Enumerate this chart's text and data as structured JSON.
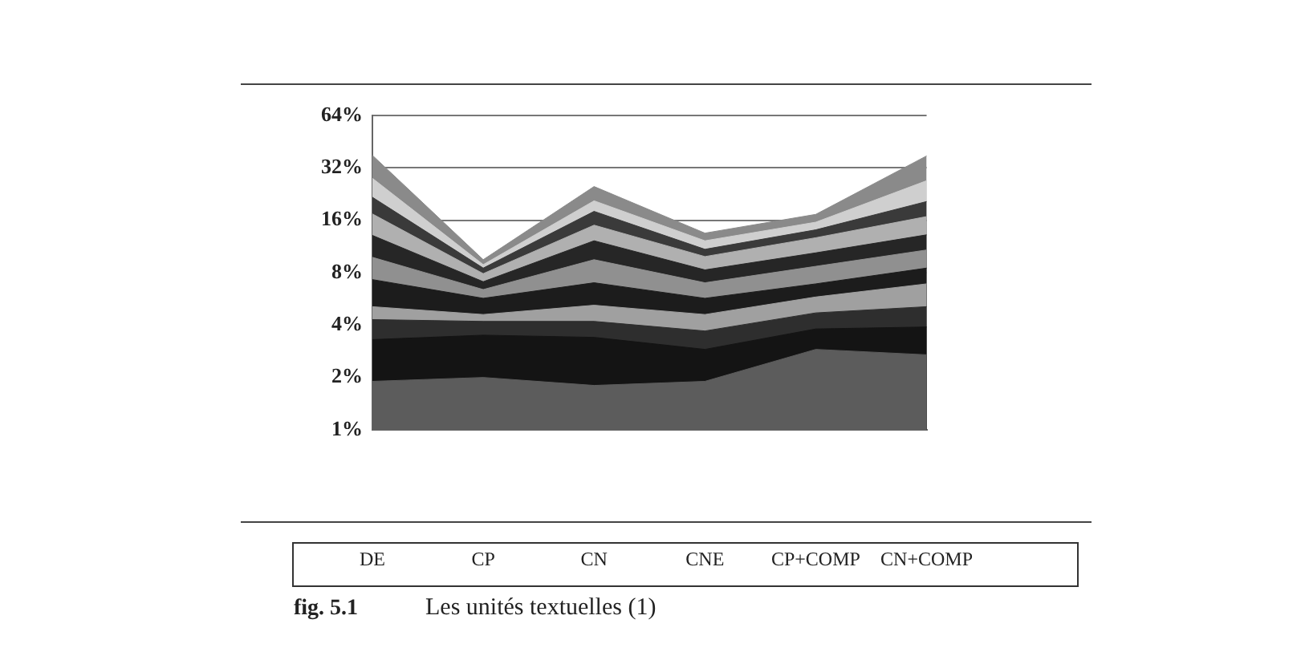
{
  "chart_data": {
    "type": "area",
    "log": true,
    "grid": "y",
    "categories": [
      "DE",
      "CP",
      "CN",
      "CNE",
      "CP+COMP",
      "CN+COMP"
    ],
    "ylim": [
      1,
      64
    ],
    "yticks": [
      {
        "value": 1,
        "label": "1%"
      },
      {
        "value": 2,
        "label": "2%"
      },
      {
        "value": 4,
        "label": "4%"
      },
      {
        "value": 8,
        "label": "8%"
      },
      {
        "value": 16,
        "label": "16%"
      },
      {
        "value": 32,
        "label": "32%"
      },
      {
        "value": 64,
        "label": "64%"
      }
    ],
    "series": [
      {
        "color": "#5c5c5c",
        "values": [
          1.9,
          2.0,
          1.8,
          1.9,
          2.9,
          2.7
        ]
      },
      {
        "color": "#141414",
        "values": [
          3.3,
          3.5,
          3.4,
          2.9,
          3.8,
          3.9
        ]
      },
      {
        "color": "#2e2e2e",
        "values": [
          4.3,
          4.2,
          4.2,
          3.7,
          4.7,
          5.1
        ]
      },
      {
        "color": "#a0a0a0",
        "values": [
          5.1,
          4.6,
          5.2,
          4.6,
          5.8,
          6.9
        ]
      },
      {
        "color": "#1c1c1c",
        "values": [
          7.3,
          5.7,
          7.0,
          5.7,
          6.9,
          8.5
        ]
      },
      {
        "color": "#909090",
        "values": [
          9.8,
          6.4,
          9.5,
          7.0,
          8.7,
          10.8
        ]
      },
      {
        "color": "#262626",
        "values": [
          13.1,
          7.1,
          12.2,
          8.3,
          10.4,
          13.2
        ]
      },
      {
        "color": "#b0b0b0",
        "values": [
          17.4,
          7.9,
          15.0,
          9.9,
          12.7,
          16.8
        ]
      },
      {
        "color": "#3a3a3a",
        "values": [
          21.7,
          8.5,
          18.0,
          10.9,
          14.1,
          20.5
        ]
      },
      {
        "color": "#cfcfcf",
        "values": [
          27.9,
          8.9,
          20.7,
          12.2,
          15.6,
          27.0
        ]
      },
      {
        "color": "#8a8a8a",
        "values": [
          37.8,
          9.5,
          25.0,
          13.5,
          17.3,
          37.5
        ]
      }
    ],
    "annotations": [
      "fig. 5.1",
      "Les unités textuelles (1)"
    ]
  }
}
